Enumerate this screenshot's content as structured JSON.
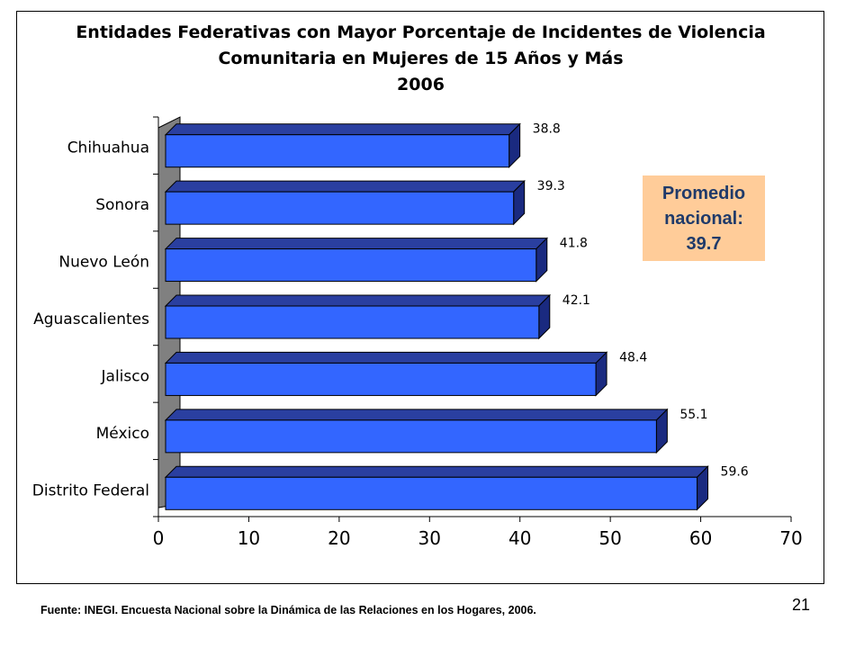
{
  "chart_data": {
    "type": "bar",
    "orientation": "horizontal",
    "title_lines": [
      "Entidades Federativas con Mayor Porcentaje de Incidentes de Violencia",
      "Comunitaria en Mujeres de 15 Años y Más",
      "2006"
    ],
    "categories": [
      "Chihuahua",
      "Sonora",
      "Nuevo León",
      "Aguascalientes",
      "Jalisco",
      "México",
      "Distrito Federal"
    ],
    "values": [
      38.8,
      39.3,
      41.8,
      42.1,
      48.4,
      55.1,
      59.6
    ],
    "data_labels": [
      "38.8",
      "39.3",
      "41.8",
      "42.1",
      "48.4",
      "55.1",
      "59.6"
    ],
    "xlim": [
      0,
      70
    ],
    "xticks": [
      "0",
      "10",
      "20",
      "30",
      "40",
      "50",
      "60",
      "70"
    ],
    "xlabel": "",
    "ylabel": "",
    "style": "3d",
    "bar_color": "#3366ff",
    "bar_top_color": "#2a3fa0",
    "bar_side_color": "#1a2a80",
    "wall_color": "#808080",
    "grid": false,
    "legend": "none",
    "annotation": {
      "lines": [
        "Promedio",
        "nacional:",
        "39.7"
      ],
      "background": "#ffcc99",
      "text_color": "#1f3a6a"
    }
  },
  "source": "Fuente: INEGI. Encuesta Nacional sobre la Dinámica de las Relaciones en los Hogares, 2006.",
  "page_number": "21"
}
